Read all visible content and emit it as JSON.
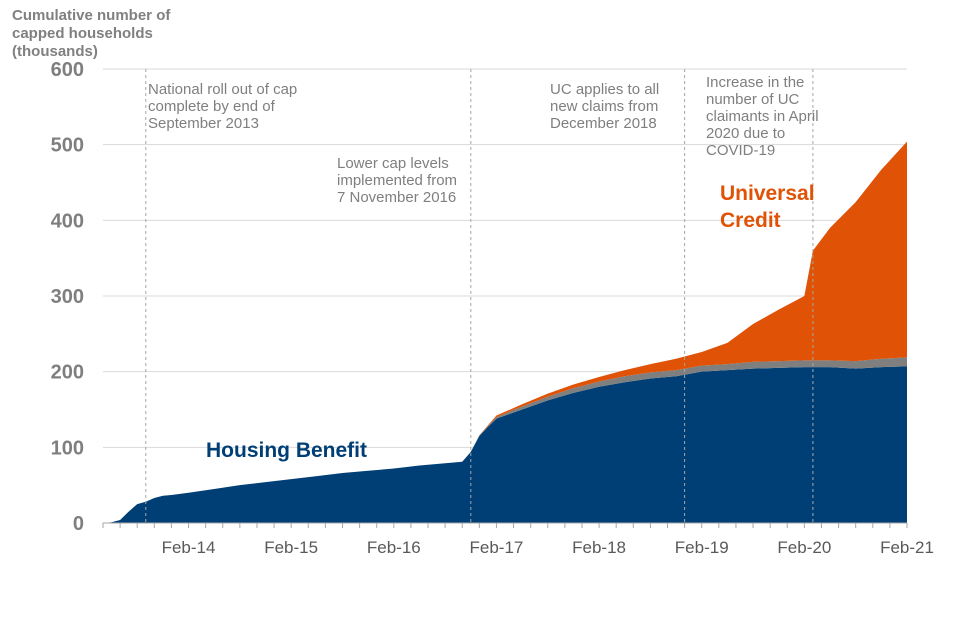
{
  "chart_data": {
    "type": "area",
    "stacked": true,
    "title": "",
    "ylabel_lines": [
      "Cumulative number of",
      "capped households",
      "(thousands)"
    ],
    "xlabel": "",
    "ylim": [
      0,
      600
    ],
    "yticks": [
      0,
      100,
      200,
      300,
      400,
      500,
      600
    ],
    "x_range": [
      "2013-04",
      "2021-02"
    ],
    "xticks": [
      {
        "date": "2014-02",
        "label": "Feb-14"
      },
      {
        "date": "2015-02",
        "label": "Feb-15"
      },
      {
        "date": "2016-02",
        "label": "Feb-16"
      },
      {
        "date": "2017-02",
        "label": "Feb-17"
      },
      {
        "date": "2018-02",
        "label": "Feb-18"
      },
      {
        "date": "2019-02",
        "label": "Feb-19"
      },
      {
        "date": "2020-02",
        "label": "Feb-20"
      },
      {
        "date": "2021-02",
        "label": "Feb-21"
      }
    ],
    "grid": true,
    "x": [
      "2013-04",
      "2013-05",
      "2013-06",
      "2013-07",
      "2013-08",
      "2013-09",
      "2013-10",
      "2013-11",
      "2013-12",
      "2014-02",
      "2014-05",
      "2014-08",
      "2014-11",
      "2015-02",
      "2015-05",
      "2015-08",
      "2015-11",
      "2016-02",
      "2016-05",
      "2016-08",
      "2016-10",
      "2016-11",
      "2016-12",
      "2017-01",
      "2017-02",
      "2017-05",
      "2017-08",
      "2017-11",
      "2018-02",
      "2018-05",
      "2018-08",
      "2018-11",
      "2019-02",
      "2019-05",
      "2019-08",
      "2019-11",
      "2020-02",
      "2020-03",
      "2020-04",
      "2020-05",
      "2020-08",
      "2020-11",
      "2021-02"
    ],
    "series": [
      {
        "name": "Housing Benefit",
        "color": "#003f75",
        "values": [
          0,
          1,
          4,
          15,
          25,
          28,
          33,
          36,
          37,
          40,
          45,
          50,
          54,
          58,
          62,
          66,
          69,
          72,
          76,
          79,
          81,
          94,
          115,
          127,
          138,
          150,
          162,
          172,
          180,
          186,
          191,
          194,
          200,
          202,
          204,
          205,
          206,
          206,
          206,
          206,
          204,
          206,
          207
        ]
      },
      {
        "name": "",
        "color": "#7f7f7f",
        "values": [
          0,
          0,
          0,
          0,
          0,
          0,
          0,
          0,
          0,
          0,
          0,
          0,
          0,
          0,
          0,
          0,
          0,
          0,
          0,
          0,
          0,
          0,
          1,
          1,
          2,
          4,
          5,
          6,
          7,
          8,
          8,
          8,
          8,
          8,
          9,
          9,
          9,
          9,
          9,
          9,
          10,
          11,
          12
        ]
      },
      {
        "name": "Universal Credit",
        "color": "#e05206",
        "values": [
          0,
          0,
          0,
          0,
          0,
          0,
          0,
          0,
          0,
          0,
          0,
          0,
          0,
          0,
          0,
          0,
          0,
          0,
          0,
          0,
          0,
          0,
          0,
          1,
          2,
          3,
          4,
          5,
          6,
          8,
          11,
          15,
          18,
          28,
          50,
          68,
          85,
          145,
          160,
          175,
          210,
          250,
          285
        ]
      }
    ],
    "annotations": [
      {
        "date": "2013-09",
        "lines": [
          "National roll out of cap",
          "complete by end of",
          "September 2013"
        ]
      },
      {
        "date": "2016-11",
        "lines": [
          "Lower cap levels",
          "implemented from",
          "7 November 2016"
        ]
      },
      {
        "date": "2018-12",
        "lines": [
          "UC applies to all",
          "new claims from",
          "December 2018"
        ]
      },
      {
        "date": "2020-03",
        "lines": [
          "Increase  in the",
          "number  of UC",
          "claimants in April",
          "2020 due to",
          "COVID-19"
        ]
      }
    ]
  }
}
